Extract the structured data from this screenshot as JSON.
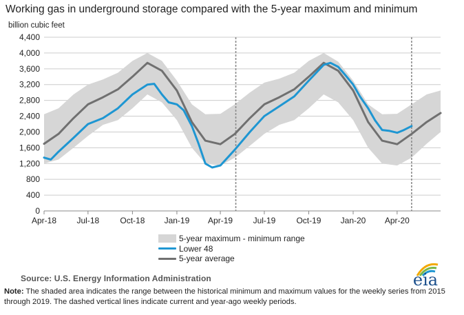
{
  "title": "Working gas in underground  storage compared with the 5-year maximum and minimum",
  "y_unit": "billion cubic feet",
  "legend": {
    "range_label": "5-year maximum - minimum range",
    "lower48_label": "Lower 48",
    "avg_label": "5-year average"
  },
  "source": "Source:  U.S. Energy Information Administration",
  "note_label": "Note:",
  "note_text": " The shaded area indicates the range between the historical minimum and maximum values for the weekly series from 2015 through 2019. The dashed vertical lines indicate current and year-ago weekly periods.",
  "logo_text": "eia",
  "colors": {
    "range": "#d6d6d6",
    "lower48": "#1e96d2",
    "average": "#707070",
    "grid": "#cccccc",
    "dashed": "#8a8a8a",
    "logo": "#1b4f8c"
  },
  "chart_data": {
    "type": "line",
    "ylim": [
      0,
      4400
    ],
    "yticks": [
      0,
      400,
      800,
      1200,
      1600,
      2000,
      2400,
      2800,
      3200,
      3600,
      4000,
      4400
    ],
    "ytick_labels": [
      "0",
      "400",
      "800",
      "1,200",
      "1,600",
      "2,000",
      "2,400",
      "2,800",
      "3,200",
      "3,600",
      "4,000",
      "4,400"
    ],
    "x_ticks": [
      {
        "label": "Apr-18",
        "date": "2018-04-01"
      },
      {
        "label": "Jul-18",
        "date": "2018-07-01"
      },
      {
        "label": "Oct-18",
        "date": "2018-10-01"
      },
      {
        "label": "Jan-19",
        "date": "2019-01-01"
      },
      {
        "label": "Apr-19",
        "date": "2019-04-01"
      },
      {
        "label": "Jul-19",
        "date": "2019-07-01"
      },
      {
        "label": "Oct-19",
        "date": "2019-10-01"
      },
      {
        "label": "Jan-20",
        "date": "2020-01-01"
      },
      {
        "label": "Apr-20",
        "date": "2020-04-01"
      }
    ],
    "xlim": [
      "2018-04-01",
      "2020-06-30"
    ],
    "dashed_lines": [
      "2019-05-03",
      "2020-05-01"
    ],
    "grid": "horizontal",
    "series": [
      {
        "name": "5-year maximum - minimum range",
        "kind": "range",
        "x": [
          "2018-04-01",
          "2018-05-01",
          "2018-06-01",
          "2018-07-01",
          "2018-08-01",
          "2018-09-01",
          "2018-10-01",
          "2018-11-01",
          "2018-12-01",
          "2019-01-01",
          "2019-02-01",
          "2019-03-01",
          "2019-04-01",
          "2019-05-01",
          "2019-06-01",
          "2019-07-01",
          "2019-08-01",
          "2019-09-01",
          "2019-10-01",
          "2019-11-01",
          "2019-12-01",
          "2020-01-01",
          "2020-02-01",
          "2020-03-01",
          "2020-04-01",
          "2020-05-01",
          "2020-06-01",
          "2020-06-30"
        ],
        "max": [
          2450,
          2600,
          2950,
          3200,
          3330,
          3500,
          3800,
          4000,
          3800,
          3300,
          2700,
          2450,
          2460,
          2700,
          3000,
          3250,
          3350,
          3500,
          3800,
          4000,
          3780,
          3300,
          2700,
          2450,
          2460,
          2700,
          2950,
          3050
        ],
        "min": [
          1200,
          1300,
          1600,
          1900,
          2180,
          2300,
          2600,
          2950,
          2750,
          2300,
          1600,
          1200,
          1150,
          1350,
          1650,
          1950,
          2180,
          2300,
          2600,
          2950,
          2750,
          2300,
          1600,
          1200,
          1150,
          1350,
          1700,
          2000
        ]
      },
      {
        "name": "5-year average",
        "x": [
          "2018-04-01",
          "2018-05-01",
          "2018-06-01",
          "2018-07-01",
          "2018-08-01",
          "2018-09-01",
          "2018-10-01",
          "2018-11-01",
          "2018-12-01",
          "2019-01-01",
          "2019-02-01",
          "2019-03-01",
          "2019-04-01",
          "2019-05-01",
          "2019-06-01",
          "2019-07-01",
          "2019-08-01",
          "2019-09-01",
          "2019-10-01",
          "2019-11-01",
          "2019-12-01",
          "2020-01-01",
          "2020-02-01",
          "2020-03-01",
          "2020-04-01",
          "2020-05-01",
          "2020-06-01",
          "2020-06-30"
        ],
        "values": [
          1700,
          1950,
          2350,
          2700,
          2880,
          3080,
          3400,
          3750,
          3550,
          3050,
          2250,
          1780,
          1690,
          1950,
          2350,
          2700,
          2880,
          3080,
          3400,
          3750,
          3550,
          3050,
          2250,
          1780,
          1690,
          1950,
          2250,
          2480
        ]
      },
      {
        "name": "Lower 48",
        "x": [
          "2018-04-01",
          "2018-04-15",
          "2018-05-01",
          "2018-06-01",
          "2018-07-01",
          "2018-08-01",
          "2018-09-01",
          "2018-10-01",
          "2018-11-01",
          "2018-11-15",
          "2018-12-01",
          "2018-12-15",
          "2019-01-01",
          "2019-01-15",
          "2019-02-01",
          "2019-02-15",
          "2019-03-01",
          "2019-03-15",
          "2019-04-01",
          "2019-05-01",
          "2019-06-01",
          "2019-07-01",
          "2019-08-01",
          "2019-09-01",
          "2019-10-01",
          "2019-11-01",
          "2019-11-15",
          "2019-12-01",
          "2019-12-15",
          "2020-01-01",
          "2020-01-15",
          "2020-02-01",
          "2020-02-15",
          "2020-03-01",
          "2020-03-15",
          "2020-04-01",
          "2020-04-15",
          "2020-05-01"
        ],
        "values": [
          1350,
          1300,
          1500,
          1850,
          2200,
          2350,
          2600,
          2950,
          3200,
          3220,
          2950,
          2750,
          2700,
          2550,
          2150,
          1700,
          1200,
          1100,
          1150,
          1550,
          2000,
          2400,
          2650,
          2900,
          3300,
          3700,
          3750,
          3650,
          3450,
          3200,
          2900,
          2600,
          2300,
          2050,
          2030,
          1980,
          2050,
          2150
        ]
      }
    ]
  }
}
